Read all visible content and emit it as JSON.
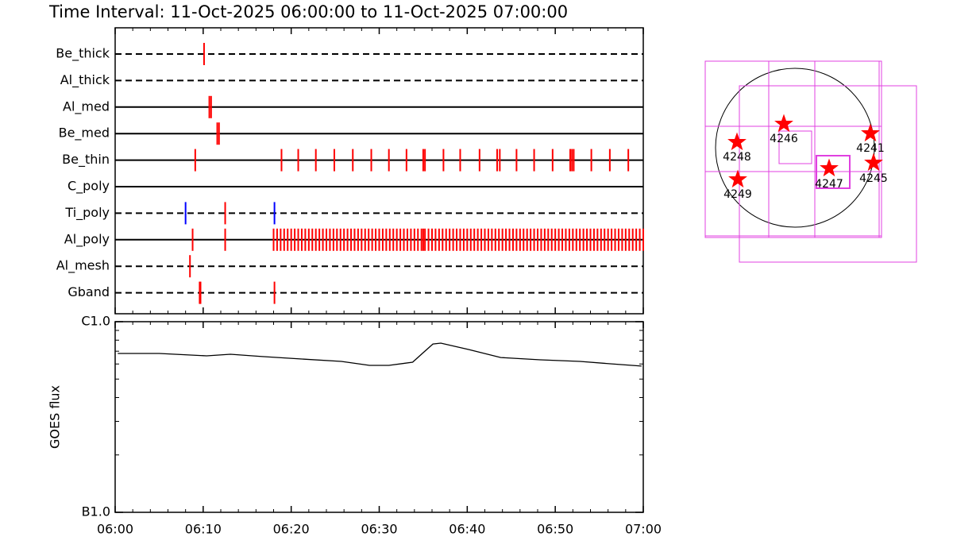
{
  "chart_data": {
    "type": "timeline",
    "title": "Time Interval: 11-Oct-2025 06:00:00 to 11-Oct-2025 07:00:00",
    "event_color": "#ff0000",
    "xlim": [
      0,
      60
    ],
    "xticks": [
      {
        "value": 0,
        "label": "06:00"
      },
      {
        "value": 10,
        "label": "06:10"
      },
      {
        "value": 20,
        "label": "06:20"
      },
      {
        "value": 30,
        "label": "06:30"
      },
      {
        "value": 40,
        "label": "06:40"
      },
      {
        "value": 50,
        "label": "06:50"
      },
      {
        "value": 60,
        "label": "07:00"
      }
    ],
    "xminorticks": [
      2,
      4,
      6,
      8,
      12,
      14,
      16,
      18,
      22,
      24,
      26,
      28,
      32,
      34,
      36,
      38,
      42,
      44,
      46,
      48,
      52,
      54,
      56,
      58
    ],
    "rows": [
      {
        "name": "Be_thick",
        "style": "dashed",
        "events": [
          10.1
        ]
      },
      {
        "name": "Al_thick",
        "style": "dashed",
        "events": []
      },
      {
        "name": "Al_med",
        "style": "solid",
        "events": [
          10.7,
          10.9
        ]
      },
      {
        "name": "Be_med",
        "style": "solid",
        "events": [
          11.6,
          11.8
        ]
      },
      {
        "name": "Be_thin",
        "style": "solid",
        "events": [
          9.1,
          18.9,
          20.8,
          22.8,
          24.9,
          27.0,
          29.1,
          31.1,
          33.1,
          35.0,
          35.2,
          37.3,
          39.2,
          41.4,
          43.4,
          43.7,
          45.6,
          47.6,
          49.7,
          51.7,
          51.9,
          52.1,
          54.1,
          56.2,
          58.3
        ]
      },
      {
        "name": "C_poly",
        "style": "solid",
        "events": []
      },
      {
        "name": "Ti_poly",
        "style": "dashed",
        "events": [
          8.0,
          12.5,
          18.1
        ],
        "colors": [
          "#0000ff",
          "#ff0000",
          "#0000ff"
        ]
      },
      {
        "name": "Al_poly",
        "style": "solid",
        "events": [
          8.8,
          12.5,
          18.0,
          18.4,
          18.8,
          19.2,
          19.6,
          20.0,
          20.4,
          20.8,
          21.2,
          21.6,
          22.0,
          22.4,
          22.8,
          23.2,
          23.6,
          24.0,
          24.4,
          24.8,
          25.2,
          25.6,
          26.0,
          26.4,
          26.8,
          27.2,
          27.6,
          28.0,
          28.4,
          28.8,
          29.2,
          29.6,
          30.0,
          30.4,
          30.8,
          31.2,
          31.6,
          32.0,
          32.4,
          32.8,
          33.2,
          33.6,
          34.0,
          34.4,
          34.8,
          35.0,
          35.2,
          35.6,
          36.0,
          36.4,
          36.8,
          37.2,
          37.6,
          38.0,
          38.4,
          38.8,
          39.2,
          39.6,
          40.0,
          40.4,
          40.8,
          41.2,
          41.6,
          42.0,
          42.4,
          42.8,
          43.2,
          43.6,
          44.0,
          44.4,
          44.8,
          45.2,
          45.6,
          46.0,
          46.4,
          46.8,
          47.2,
          47.6,
          48.0,
          48.4,
          48.8,
          49.2,
          49.6,
          50.0,
          50.4,
          50.8,
          51.2,
          51.6,
          52.0,
          52.4,
          52.8,
          53.2,
          53.6,
          54.0,
          54.4,
          54.8,
          55.2,
          55.6,
          56.0,
          56.4,
          56.8,
          57.2,
          57.6,
          58.0,
          58.4,
          58.8,
          59.2,
          59.6,
          60.0
        ]
      },
      {
        "name": "Al_mesh",
        "style": "dashed",
        "events": [
          8.5
        ]
      },
      {
        "name": "Gband",
        "style": "dashed",
        "events": [
          9.6,
          9.7,
          18.1
        ]
      }
    ],
    "goes": {
      "type": "line",
      "ylabel": "GOES flux",
      "color": "#000000",
      "yscale": "log",
      "ylim": [
        1e-07,
        1e-06
      ],
      "yticks": [
        {
          "value": 1e-07,
          "label": "B1.0"
        },
        {
          "value": 1e-06,
          "label": "C1.0"
        }
      ],
      "yminorticks": [
        2e-07,
        3e-07,
        4e-07,
        5e-07,
        6e-07,
        7e-07,
        8e-07,
        9e-07
      ],
      "x": [
        0.3,
        5.0,
        10.4,
        13.1,
        16.7,
        21.2,
        25.7,
        28.9,
        31.1,
        33.8,
        34.9,
        36.1,
        37.0,
        40.2,
        43.8,
        48.3,
        52.8,
        56.4,
        59.8
      ],
      "values": [
        6.81e-07,
        6.81e-07,
        6.62e-07,
        6.75e-07,
        6.56e-07,
        6.37e-07,
        6.19e-07,
        5.9e-07,
        5.9e-07,
        6.13e-07,
        6.81e-07,
        7.64e-07,
        7.72e-07,
        7.14e-07,
        6.49e-07,
        6.31e-07,
        6.19e-07,
        6.01e-07,
        5.85e-07
      ]
    },
    "map": {
      "regions": [
        4248,
        4246,
        4241,
        4247,
        4245,
        4249
      ]
    }
  }
}
